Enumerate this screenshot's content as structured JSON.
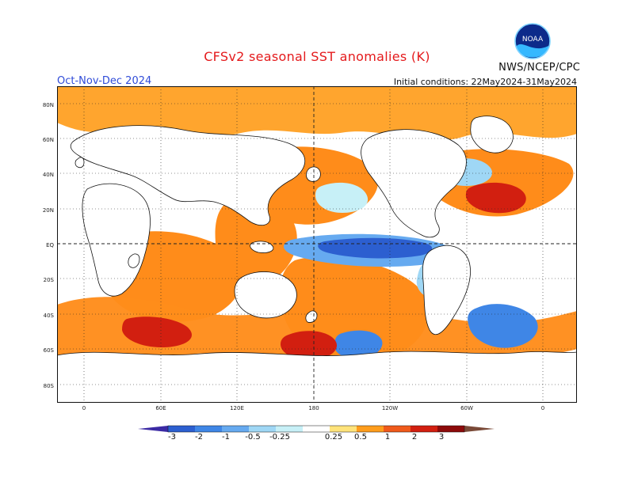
{
  "header": {
    "title": "CFSv2 seasonal SST anomalies (K)",
    "agency": "NWS/NCEP/CPC",
    "season": "Oct-Nov-Dec 2024",
    "initial_conditions": "Initial conditions: 22May2024-31May2024"
  },
  "logo": {
    "icon": "noaa-logo-icon",
    "text": "NOAA"
  },
  "map": {
    "lat_labels": [
      "80N",
      "60N",
      "40N",
      "20N",
      "EQ",
      "20S",
      "40S",
      "60S",
      "80S"
    ],
    "lon_labels": [
      "0",
      "60E",
      "120E",
      "180",
      "120W",
      "60W",
      "0"
    ]
  },
  "colorbar": {
    "tick_labels": [
      "-3",
      "-2",
      "-1",
      "-0.5",
      "-0.25",
      "0.25",
      "0.5",
      "1",
      "2",
      "3"
    ],
    "colors": [
      "#3b2aa4",
      "#2c5fd0",
      "#3f86e6",
      "#66aaf0",
      "#9fd7f5",
      "#c7f0f7",
      "#ffffff",
      "#ffe37a",
      "#ff9d1c",
      "#f05a1b",
      "#d21f10",
      "#8d0a0a",
      "#7a4a38"
    ]
  }
}
